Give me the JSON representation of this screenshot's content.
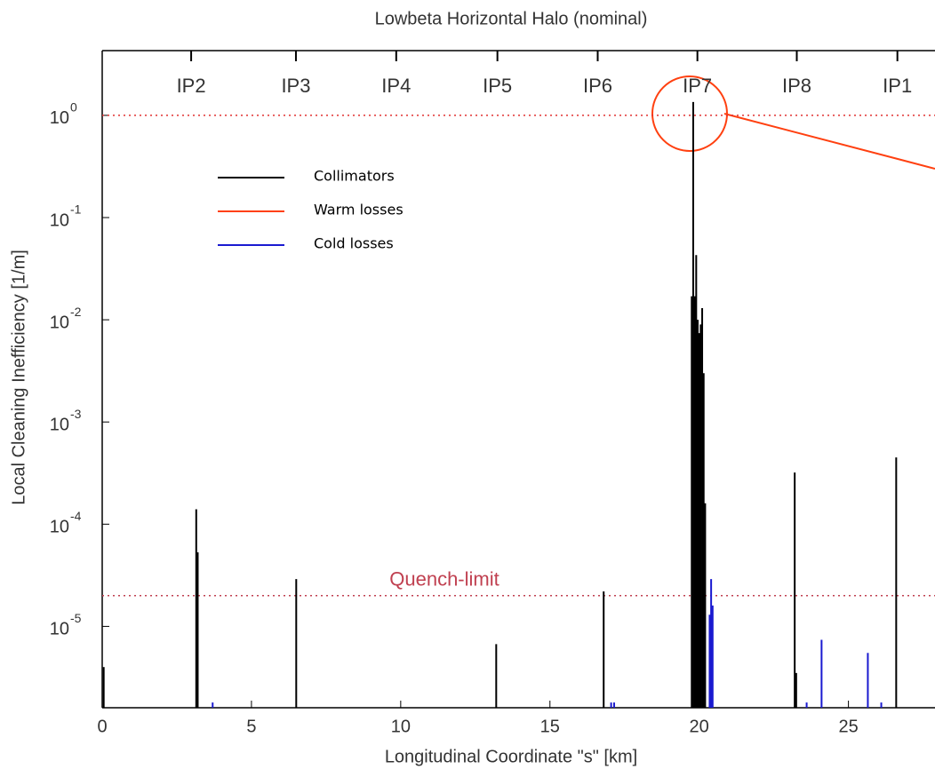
{
  "chart_data": {
    "type": "spike",
    "title": "Lowbeta Horizontal Halo (nominal)",
    "xlabel": "Longitudinal Coordinate \"s\" [km]",
    "ylabel": "Local Cleaning Inefficiency [1/m]",
    "xlim": [
      0,
      27.9
    ],
    "ylim": [
      1.6e-06,
      4.3
    ],
    "log_y": true,
    "xticks": [
      0,
      5,
      10,
      15,
      20,
      25
    ],
    "yticks": [
      {
        "value": 1,
        "label": "10",
        "exponent": "0"
      },
      {
        "value": 0.1,
        "label": "10",
        "exponent": "-1"
      },
      {
        "value": 0.01,
        "label": "10",
        "exponent": "-2"
      },
      {
        "value": 0.001,
        "label": "10",
        "exponent": "-3"
      },
      {
        "value": 0.0001,
        "label": "10",
        "exponent": "-4"
      },
      {
        "value": 1e-05,
        "label": "10",
        "exponent": "-5"
      }
    ],
    "top_labels": [
      {
        "x": 2.98,
        "label": "IP2"
      },
      {
        "x": 6.49,
        "label": "IP3"
      },
      {
        "x": 9.85,
        "label": "IP4"
      },
      {
        "x": 13.24,
        "label": "IP5"
      },
      {
        "x": 16.6,
        "label": "IP6"
      },
      {
        "x": 19.94,
        "label": "IP7"
      },
      {
        "x": 23.27,
        "label": "IP8"
      },
      {
        "x": 26.64,
        "label": "IP1"
      }
    ],
    "hlines": [
      {
        "value": 1,
        "color": "#e03030"
      },
      {
        "value": 2e-05,
        "color": "#c04050",
        "label": "Quench-limit"
      }
    ],
    "legend": "upper left",
    "series": [
      {
        "name": "Collimators",
        "color": "#000000",
        "x": [
          0.05,
          3.15,
          3.2,
          6.5,
          13.2,
          16.8,
          19.75,
          19.8,
          19.85,
          19.9,
          19.95,
          20.0,
          20.05,
          20.1,
          20.15,
          20.2,
          23.2,
          23.25,
          26.6
        ],
        "values": [
          4e-06,
          0.00014,
          5.3e-05,
          2.9e-05,
          6.7e-06,
          2.2e-05,
          0.017,
          1.35,
          0.017,
          0.043,
          0.01,
          0.0074,
          0.009,
          0.013,
          0.003,
          0.00016,
          0.00032,
          3.5e-06,
          0.00045
        ]
      },
      {
        "name": "Warm losses",
        "color": "#ff4010",
        "x": [],
        "values": []
      },
      {
        "name": "Cold losses",
        "color": "#1a1ad0",
        "x": [
          3.7,
          17.05,
          17.15,
          20.35,
          20.4,
          20.45,
          23.6,
          24.1,
          25.65,
          26.1
        ],
        "values": [
          1.8e-06,
          1.8e-06,
          1.8e-06,
          1.3e-05,
          2.9e-05,
          1.6e-05,
          1.8e-06,
          7.4e-06,
          5.5e-06,
          1.8e-06
        ]
      }
    ]
  }
}
